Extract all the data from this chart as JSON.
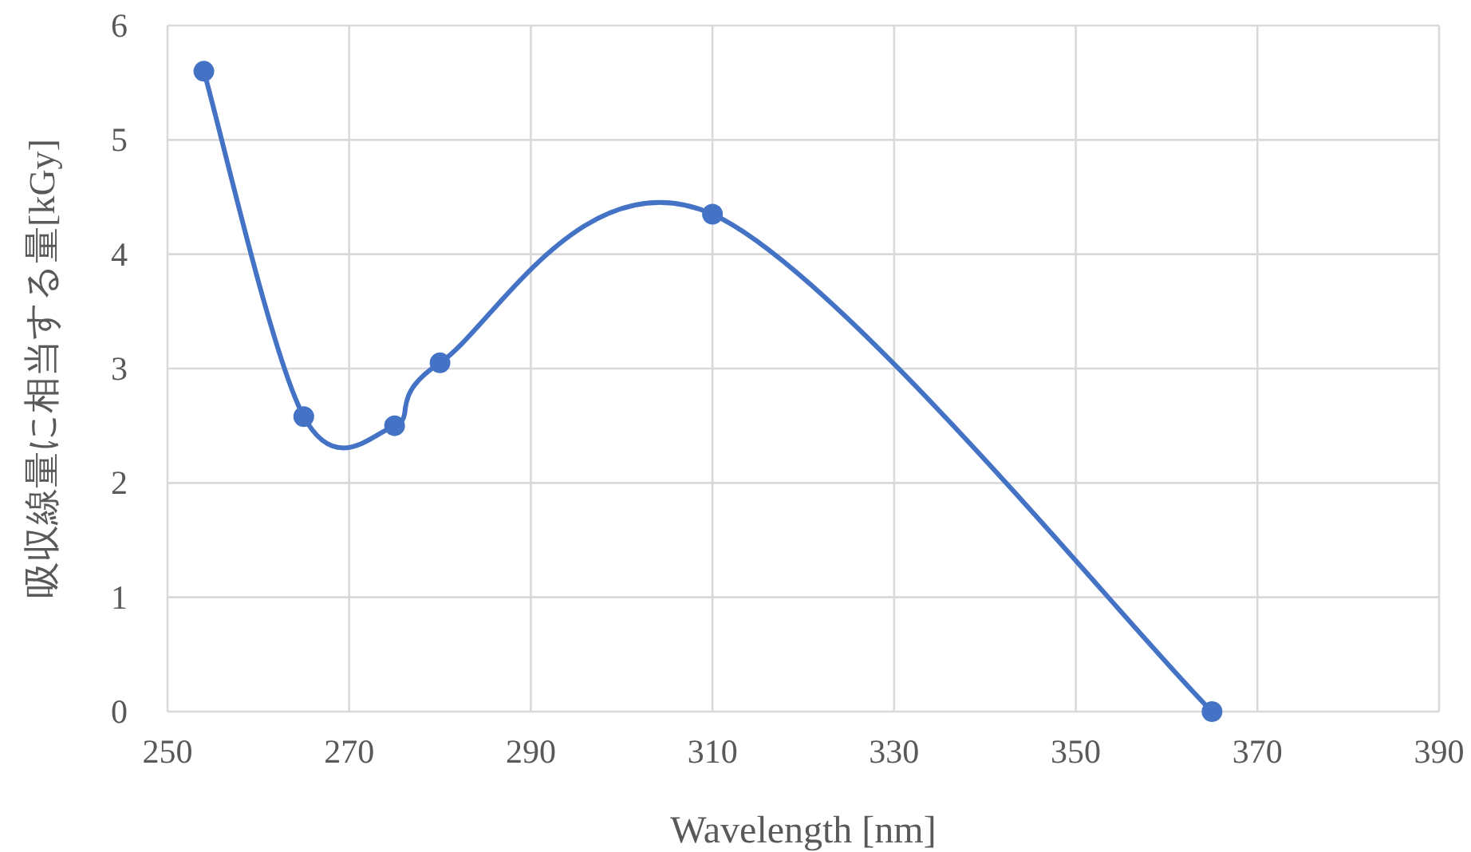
{
  "chart_data": {
    "type": "line",
    "xlabel": "Wavelength [nm]",
    "ylabel": "吸収線量に相当する量[kGy]",
    "x": [
      254,
      265,
      275,
      280,
      310,
      365
    ],
    "series": [
      {
        "color": "#4472c4",
        "values": [
          5.6,
          2.58,
          2.5,
          3.05,
          4.35,
          0
        ]
      }
    ],
    "xlim": [
      250,
      390
    ],
    "xticks": [
      250,
      270,
      290,
      310,
      330,
      350,
      370,
      390
    ],
    "ylim": [
      0,
      6
    ],
    "yticks": [
      0,
      1,
      2,
      3,
      4,
      5,
      6
    ],
    "grid": true,
    "marker": "circle",
    "line_style": "solid"
  }
}
